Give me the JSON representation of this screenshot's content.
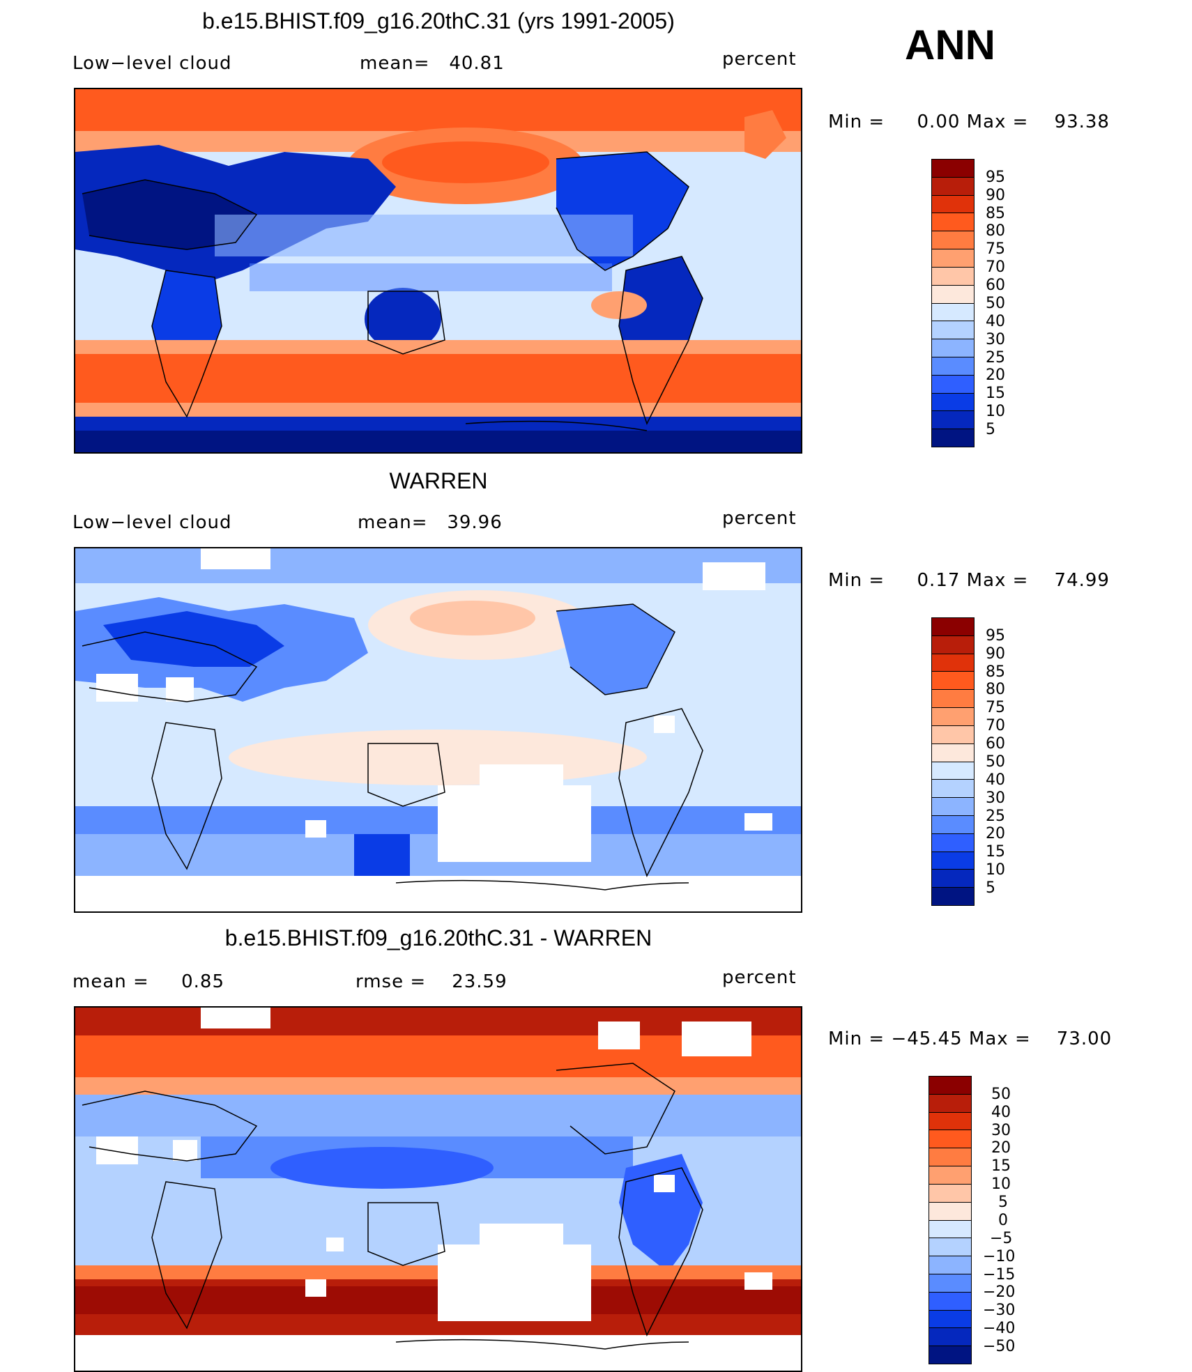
{
  "season": "ANN",
  "panels": [
    {
      "id": "model",
      "title": "b.e15.BHIST.f09_g16.20thC.31 (yrs 1991-2005)",
      "left_label": "Low−level cloud",
      "center_label": "mean=   40.81",
      "right_label": "percent",
      "minmax": "Min =     0.00 Max =    93.38",
      "colorbar_labels": [
        "95",
        "90",
        "85",
        "80",
        "75",
        "70",
        "60",
        "50",
        "40",
        "30",
        "25",
        "20",
        "15",
        "10",
        "5"
      ],
      "min": 0.0,
      "max": 93.38,
      "mean": 40.81
    },
    {
      "id": "obs",
      "title": "WARREN",
      "left_label": "Low−level cloud",
      "center_label": "mean=   39.96",
      "right_label": "percent",
      "minmax": "Min =     0.17 Max =    74.99",
      "colorbar_labels": [
        "95",
        "90",
        "85",
        "80",
        "75",
        "70",
        "60",
        "50",
        "40",
        "30",
        "25",
        "20",
        "15",
        "10",
        "5"
      ],
      "min": 0.17,
      "max": 74.99,
      "mean": 39.96
    },
    {
      "id": "diff",
      "title": "b.e15.BHIST.f09_g16.20thC.31 - WARREN",
      "left_label": "mean =     0.85",
      "center_label": "rmse =    23.59",
      "right_label": "percent",
      "minmax": "Min = −45.45 Max =    73.00",
      "colorbar_labels": [
        "50",
        "40",
        "30",
        "20",
        "15",
        "10",
        "5",
        "0",
        "−5",
        "−10",
        "−15",
        "−20",
        "−30",
        "−40",
        "−50"
      ],
      "min": -45.45,
      "max": 73.0,
      "mean": 0.85,
      "rmse": 23.59
    }
  ],
  "colors": {
    "abs_scale": [
      "#8b0000",
      "#b81e0a",
      "#e0320a",
      "#ff5a1e",
      "#ff7c41",
      "#ffa070",
      "#ffc6a8",
      "#fde8dc",
      "#d6e9ff",
      "#b4d2ff",
      "#8cb4ff",
      "#5a8cff",
      "#2f5fff",
      "#0a3ce6",
      "#0528be",
      "#001482"
    ],
    "diff_scale": [
      "#8b0000",
      "#b81e0a",
      "#e0320a",
      "#ff5a1e",
      "#ff7c41",
      "#ffa070",
      "#ffc6a8",
      "#fde8dc",
      "#d6e9ff",
      "#b4d2ff",
      "#8cb4ff",
      "#5a8cff",
      "#2f5fff",
      "#0a3ce6",
      "#0528be",
      "#001482"
    ]
  }
}
